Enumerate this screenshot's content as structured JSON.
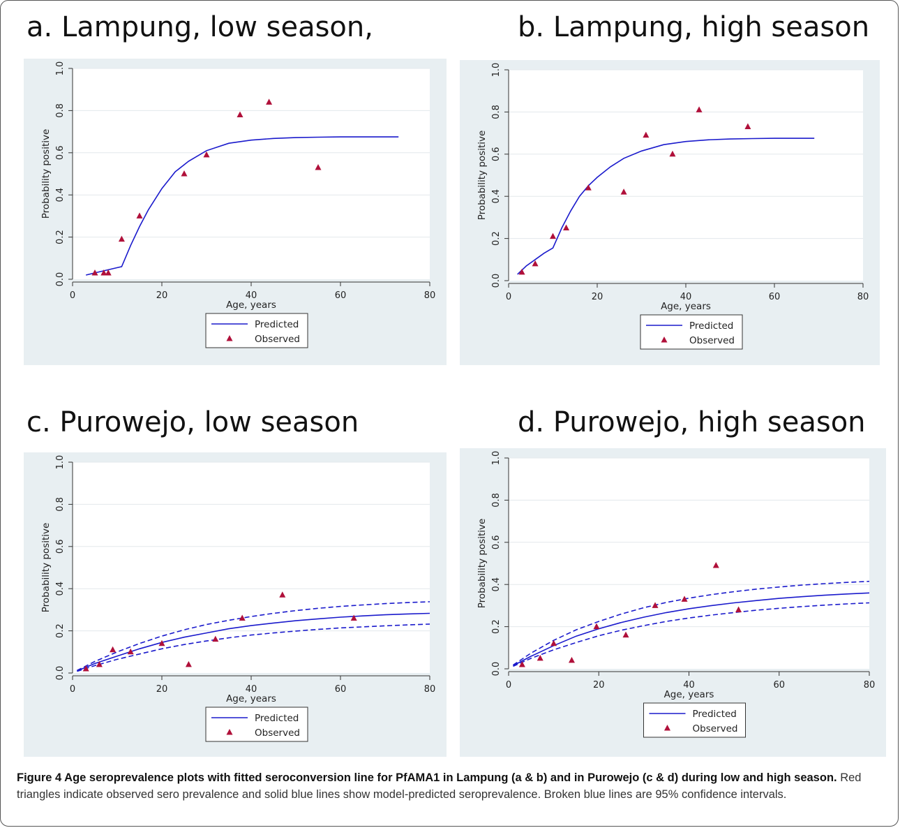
{
  "panels": [
    {
      "title": "a. Lampung, low season,"
    },
    {
      "title": "b. Lampung, high season"
    },
    {
      "title": "c. Purowejo, low season"
    },
    {
      "title": "d. Purowejo, high season"
    }
  ],
  "caption": {
    "bold": "Figure 4 Age seroprevalence plots with fitted seroconversion line for PfAMA1 in Lampung (a & b) and in Purowejo (c & d) during low and high season.",
    "text": " Red triangles indicate observed sero prevalence and solid blue lines show model-predicted seroprevalence. Broken blue lines are 95% confidence intervals."
  },
  "colors": {
    "predicted": "#1a1acc",
    "observed": "#b0103a",
    "panel_bg": "#e8eff2",
    "plot_bg": "#ffffff",
    "grid": "#e3e8ec"
  },
  "chart_data": [
    {
      "type": "line",
      "title": "a. Lampung, low season,",
      "xlabel": "Age, years",
      "ylabel": "Probability positive",
      "xlim": [
        0,
        80
      ],
      "ylim": [
        0,
        1
      ],
      "xticks": [
        "0",
        "20",
        "40",
        "60",
        "80"
      ],
      "yticks": [
        "0.0",
        "0.2",
        "0.4",
        "0.6",
        "0.8",
        "1.0"
      ],
      "grid": true,
      "legend": {
        "position": "bottom",
        "entries": [
          "Predicted",
          "Observed"
        ]
      },
      "series": [
        {
          "name": "Predicted",
          "kind": "line",
          "x": [
            3,
            5,
            7,
            9,
            10,
            11,
            12,
            13,
            15,
            17,
            20,
            23,
            26,
            30,
            35,
            40,
            45,
            50,
            55,
            60,
            65,
            73
          ],
          "y": [
            0.02,
            0.03,
            0.04,
            0.05,
            0.055,
            0.06,
            0.11,
            0.16,
            0.25,
            0.33,
            0.43,
            0.51,
            0.56,
            0.61,
            0.645,
            0.66,
            0.668,
            0.672,
            0.674,
            0.675,
            0.675,
            0.675
          ]
        },
        {
          "name": "Observed",
          "kind": "scatter",
          "x": [
            5,
            7,
            8,
            11,
            15,
            25,
            30,
            37.5,
            44,
            55
          ],
          "y": [
            0.03,
            0.03,
            0.03,
            0.19,
            0.3,
            0.5,
            0.59,
            0.78,
            0.84,
            0.53
          ]
        }
      ]
    },
    {
      "type": "line",
      "title": "b. Lampung, high season",
      "xlabel": "Age, years",
      "ylabel": "Probability positive",
      "xlim": [
        0,
        80
      ],
      "ylim": [
        0,
        1
      ],
      "xticks": [
        "0",
        "20",
        "40",
        "60",
        "80"
      ],
      "yticks": [
        "0.0",
        "0.2",
        "0.4",
        "0.6",
        "0.8",
        "1.0"
      ],
      "grid": true,
      "legend": {
        "position": "bottom",
        "entries": [
          "Predicted",
          "Observed"
        ]
      },
      "series": [
        {
          "name": "Predicted",
          "kind": "line",
          "x": [
            2,
            4,
            6,
            8,
            10,
            12,
            14,
            16,
            18,
            20,
            23,
            26,
            30,
            35,
            40,
            45,
            50,
            55,
            60,
            65,
            69
          ],
          "y": [
            0.03,
            0.07,
            0.1,
            0.13,
            0.155,
            0.25,
            0.33,
            0.4,
            0.45,
            0.49,
            0.54,
            0.58,
            0.615,
            0.645,
            0.66,
            0.668,
            0.672,
            0.674,
            0.675,
            0.675,
            0.675
          ]
        },
        {
          "name": "Observed",
          "kind": "scatter",
          "x": [
            3,
            6,
            10,
            13,
            18,
            26,
            31,
            37,
            43,
            54
          ],
          "y": [
            0.04,
            0.08,
            0.21,
            0.25,
            0.44,
            0.42,
            0.69,
            0.6,
            0.81,
            0.73
          ]
        }
      ]
    },
    {
      "type": "line",
      "title": "c. Purowejo, low season",
      "xlabel": "Age, years",
      "ylabel": "Probability positive",
      "xlim": [
        0,
        80
      ],
      "ylim": [
        0,
        1
      ],
      "xticks": [
        "0",
        "20",
        "40",
        "60",
        "80"
      ],
      "yticks": [
        "0.0",
        "0.2",
        "0.4",
        "0.6",
        "0.8",
        "1.0"
      ],
      "grid": true,
      "legend": {
        "position": "bottom",
        "entries": [
          "Predicted",
          "Observed"
        ]
      },
      "series": [
        {
          "name": "Predicted",
          "kind": "line",
          "x": [
            1,
            5,
            10,
            15,
            20,
            25,
            30,
            35,
            40,
            45,
            50,
            55,
            60,
            65,
            70,
            75,
            80
          ],
          "y": [
            0.01,
            0.045,
            0.08,
            0.115,
            0.145,
            0.17,
            0.19,
            0.21,
            0.225,
            0.237,
            0.248,
            0.257,
            0.265,
            0.271,
            0.276,
            0.28,
            0.283
          ]
        },
        {
          "name": "Upper 95% CI",
          "kind": "dashed",
          "x": [
            1,
            5,
            10,
            15,
            20,
            25,
            30,
            35,
            40,
            45,
            50,
            55,
            60,
            65,
            70,
            75,
            80
          ],
          "y": [
            0.012,
            0.055,
            0.1,
            0.14,
            0.175,
            0.205,
            0.23,
            0.25,
            0.268,
            0.283,
            0.296,
            0.307,
            0.316,
            0.323,
            0.329,
            0.334,
            0.338
          ]
        },
        {
          "name": "Lower 95% CI",
          "kind": "dashed",
          "x": [
            1,
            5,
            10,
            15,
            20,
            25,
            30,
            35,
            40,
            45,
            50,
            55,
            60,
            65,
            70,
            75,
            80
          ],
          "y": [
            0.008,
            0.035,
            0.065,
            0.09,
            0.115,
            0.135,
            0.152,
            0.167,
            0.18,
            0.19,
            0.199,
            0.207,
            0.214,
            0.219,
            0.224,
            0.228,
            0.232
          ]
        },
        {
          "name": "Observed",
          "kind": "scatter",
          "x": [
            3,
            6,
            9,
            13,
            20,
            26,
            32,
            38,
            47,
            63
          ],
          "y": [
            0.02,
            0.04,
            0.11,
            0.1,
            0.14,
            0.04,
            0.16,
            0.26,
            0.37,
            0.26
          ]
        }
      ]
    },
    {
      "type": "line",
      "title": "d. Purowejo, high season",
      "xlabel": "Age, years",
      "ylabel": "Probability positive",
      "xlim": [
        0,
        80
      ],
      "ylim": [
        0,
        1
      ],
      "xticks": [
        "0",
        "20",
        "40",
        "60",
        "80"
      ],
      "yticks": [
        "0.0",
        "0.2",
        "0.4",
        "0.6",
        "0.8",
        "1.0"
      ],
      "grid": true,
      "legend": {
        "position": "bottom",
        "entries": [
          "Predicted",
          "Observed"
        ]
      },
      "series": [
        {
          "name": "Predicted",
          "kind": "line",
          "x": [
            1,
            5,
            10,
            15,
            20,
            25,
            30,
            35,
            40,
            45,
            50,
            55,
            60,
            65,
            70,
            75,
            80
          ],
          "y": [
            0.015,
            0.06,
            0.11,
            0.155,
            0.19,
            0.22,
            0.245,
            0.267,
            0.285,
            0.3,
            0.313,
            0.324,
            0.334,
            0.342,
            0.349,
            0.355,
            0.36
          ]
        },
        {
          "name": "Upper 95% CI",
          "kind": "dashed",
          "x": [
            1,
            5,
            10,
            15,
            20,
            25,
            30,
            35,
            40,
            45,
            50,
            55,
            60,
            65,
            70,
            75,
            80
          ],
          "y": [
            0.018,
            0.075,
            0.135,
            0.185,
            0.225,
            0.26,
            0.29,
            0.315,
            0.335,
            0.352,
            0.366,
            0.378,
            0.388,
            0.397,
            0.404,
            0.41,
            0.415
          ]
        },
        {
          "name": "Lower 95% CI",
          "kind": "dashed",
          "x": [
            1,
            5,
            10,
            15,
            20,
            25,
            30,
            35,
            40,
            45,
            50,
            55,
            60,
            65,
            70,
            75,
            80
          ],
          "y": [
            0.012,
            0.05,
            0.09,
            0.125,
            0.157,
            0.183,
            0.205,
            0.225,
            0.241,
            0.255,
            0.267,
            0.278,
            0.287,
            0.295,
            0.302,
            0.308,
            0.313
          ]
        },
        {
          "name": "Observed",
          "kind": "scatter",
          "x": [
            3,
            7,
            10,
            14,
            19.5,
            26,
            32.5,
            39,
            46,
            51
          ],
          "y": [
            0.02,
            0.05,
            0.12,
            0.04,
            0.2,
            0.16,
            0.3,
            0.33,
            0.49,
            0.28
          ]
        }
      ]
    }
  ]
}
